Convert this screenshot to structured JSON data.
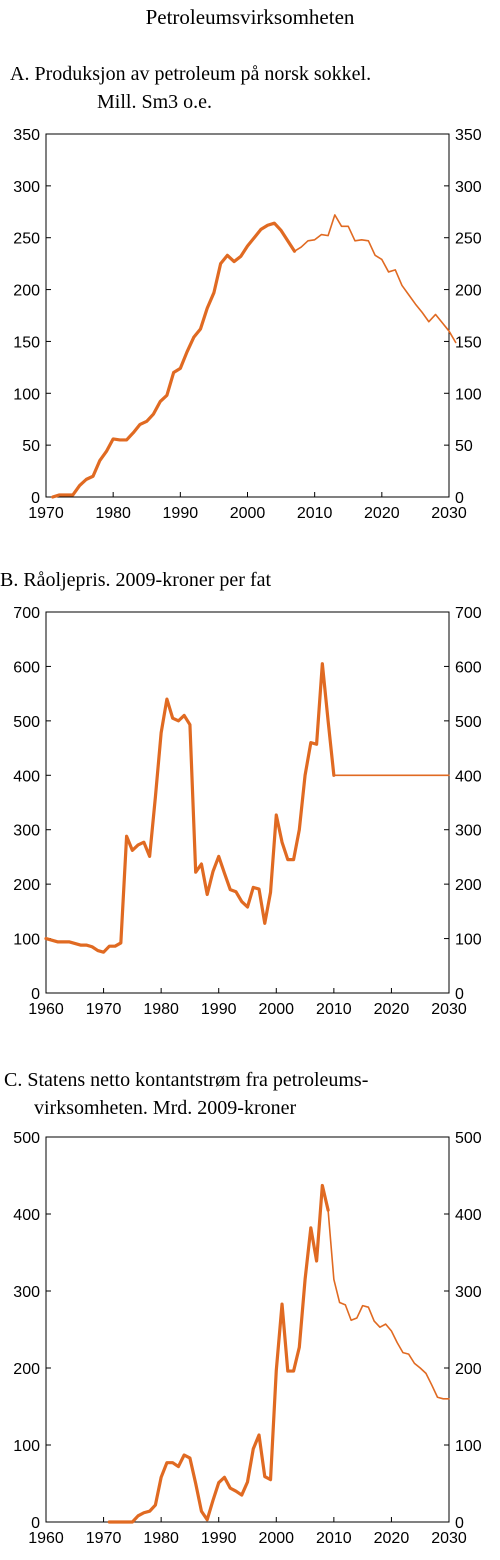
{
  "page_title": "Petroleumsvirksomheten",
  "colors": {
    "series": "#e06a22",
    "axis": "#000000"
  },
  "chart_data": [
    {
      "type": "line",
      "title_lines": [
        "A. Produksjon av petroleum på norsk sokkel.",
        "Mill. Sm3 o.e."
      ],
      "xlabel": "",
      "ylabel": "",
      "xlim": [
        1970,
        2030
      ],
      "ylim": [
        0,
        350
      ],
      "xticks": [
        1970,
        1980,
        1990,
        2000,
        2010,
        2020,
        2030
      ],
      "yticks": [
        0,
        50,
        100,
        150,
        200,
        250,
        300,
        350
      ],
      "grid": false,
      "legend": "none",
      "right_axis": true,
      "series": [
        {
          "style": "historical",
          "points": [
            [
              1971,
              0
            ],
            [
              1972,
              2
            ],
            [
              1973,
              2
            ],
            [
              1974,
              2
            ],
            [
              1975,
              11
            ],
            [
              1976,
              17
            ],
            [
              1977,
              20
            ],
            [
              1978,
              35
            ],
            [
              1979,
              44
            ],
            [
              1980,
              56
            ],
            [
              1981,
              55
            ],
            [
              1982,
              55
            ],
            [
              1983,
              62
            ],
            [
              1984,
              70
            ],
            [
              1985,
              73
            ],
            [
              1986,
              80
            ],
            [
              1987,
              92
            ],
            [
              1988,
              98
            ],
            [
              1989,
              120
            ],
            [
              1990,
              124
            ],
            [
              1991,
              140
            ],
            [
              1992,
              154
            ],
            [
              1993,
              162
            ],
            [
              1994,
              182
            ],
            [
              1995,
              197
            ],
            [
              1996,
              225
            ],
            [
              1997,
              233
            ],
            [
              1998,
              227
            ],
            [
              1999,
              232
            ],
            [
              2000,
              242
            ],
            [
              2001,
              250
            ],
            [
              2002,
              258
            ],
            [
              2003,
              262
            ],
            [
              2004,
              264
            ],
            [
              2005,
              257
            ],
            [
              2006,
              247
            ],
            [
              2007,
              237
            ]
          ]
        },
        {
          "style": "projection",
          "points": [
            [
              2007,
              237
            ],
            [
              2008,
              241
            ],
            [
              2009,
              247
            ],
            [
              2010,
              248
            ],
            [
              2011,
              253
            ],
            [
              2012,
              252
            ],
            [
              2013,
              272
            ],
            [
              2014,
              261
            ],
            [
              2015,
              261
            ],
            [
              2016,
              247
            ],
            [
              2017,
              248
            ],
            [
              2018,
              247
            ],
            [
              2019,
              233
            ],
            [
              2020,
              229
            ],
            [
              2021,
              217
            ],
            [
              2022,
              219
            ],
            [
              2023,
              204
            ],
            [
              2024,
              195
            ],
            [
              2025,
              186
            ],
            [
              2026,
              178
            ],
            [
              2027,
              169
            ],
            [
              2028,
              176
            ],
            [
              2029,
              168
            ],
            [
              2030,
              160
            ],
            [
              2031,
              149
            ]
          ]
        }
      ]
    },
    {
      "type": "line",
      "title_lines": [
        "B. Råoljepris. 2009-kroner per fat"
      ],
      "xlabel": "",
      "ylabel": "",
      "xlim": [
        1960,
        2030
      ],
      "ylim": [
        0,
        700
      ],
      "xticks": [
        1960,
        1970,
        1980,
        1990,
        2000,
        2010,
        2020,
        2030
      ],
      "yticks": [
        0,
        100,
        200,
        300,
        400,
        500,
        600,
        700
      ],
      "grid": false,
      "legend": "none",
      "right_axis": true,
      "series": [
        {
          "style": "historical",
          "points": [
            [
              1960,
              100
            ],
            [
              1961,
              97
            ],
            [
              1962,
              94
            ],
            [
              1963,
              94
            ],
            [
              1964,
              94
            ],
            [
              1965,
              91
            ],
            [
              1966,
              88
            ],
            [
              1967,
              88
            ],
            [
              1968,
              85
            ],
            [
              1969,
              78
            ],
            [
              1970,
              75
            ],
            [
              1971,
              86
            ],
            [
              1972,
              86
            ],
            [
              1973,
              92
            ],
            [
              1974,
              288
            ],
            [
              1975,
              262
            ],
            [
              1976,
              272
            ],
            [
              1977,
              277
            ],
            [
              1978,
              251
            ],
            [
              1979,
              360
            ],
            [
              1980,
              478
            ],
            [
              1981,
              540
            ],
            [
              1982,
              505
            ],
            [
              1983,
              500
            ],
            [
              1984,
              510
            ],
            [
              1985,
              493
            ],
            [
              1986,
              222
            ],
            [
              1987,
              237
            ],
            [
              1988,
              181
            ],
            [
              1989,
              223
            ],
            [
              1990,
              251
            ],
            [
              1991,
              220
            ],
            [
              1992,
              190
            ],
            [
              1993,
              186
            ],
            [
              1994,
              168
            ],
            [
              1995,
              158
            ],
            [
              1996,
              194
            ],
            [
              1997,
              191
            ],
            [
              1998,
              128
            ],
            [
              1999,
              185
            ],
            [
              2000,
              327
            ],
            [
              2001,
              277
            ],
            [
              2002,
              245
            ],
            [
              2003,
              245
            ],
            [
              2004,
              300
            ],
            [
              2005,
              400
            ],
            [
              2006,
              460
            ],
            [
              2007,
              457
            ],
            [
              2008,
              605
            ],
            [
              2009,
              500
            ],
            [
              2010,
              400
            ]
          ]
        },
        {
          "style": "projection",
          "points": [
            [
              2010,
              400
            ],
            [
              2030,
              400
            ]
          ]
        }
      ]
    },
    {
      "type": "line",
      "title_lines": [
        "C. Statens netto kontantstrøm fra petroleums-",
        "virksomheten. Mrd. 2009-kroner"
      ],
      "xlabel": "",
      "ylabel": "",
      "xlim": [
        1960,
        2030
      ],
      "ylim": [
        0,
        500
      ],
      "xticks": [
        1960,
        1970,
        1980,
        1990,
        2000,
        2010,
        2020,
        2030
      ],
      "yticks": [
        0,
        100,
        200,
        300,
        400,
        500
      ],
      "grid": false,
      "legend": "none",
      "right_axis": true,
      "series": [
        {
          "style": "historical",
          "points": [
            [
              1971,
              0
            ],
            [
              1972,
              0
            ],
            [
              1973,
              0
            ],
            [
              1974,
              0
            ],
            [
              1975,
              0
            ],
            [
              1976,
              8
            ],
            [
              1977,
              12
            ],
            [
              1978,
              14
            ],
            [
              1979,
              22
            ],
            [
              1980,
              58
            ],
            [
              1981,
              77
            ],
            [
              1982,
              77
            ],
            [
              1983,
              72
            ],
            [
              1984,
              87
            ],
            [
              1985,
              83
            ],
            [
              1986,
              50
            ],
            [
              1987,
              14
            ],
            [
              1988,
              3
            ],
            [
              1989,
              28
            ],
            [
              1990,
              51
            ],
            [
              1991,
              58
            ],
            [
              1992,
              44
            ],
            [
              1993,
              40
            ],
            [
              1994,
              35
            ],
            [
              1995,
              52
            ],
            [
              1996,
              95
            ],
            [
              1997,
              113
            ],
            [
              1998,
              59
            ],
            [
              1999,
              55
            ],
            [
              2000,
              197
            ],
            [
              2001,
              283
            ],
            [
              2002,
              196
            ],
            [
              2003,
              196
            ],
            [
              2004,
              227
            ],
            [
              2005,
              315
            ],
            [
              2006,
              382
            ],
            [
              2007,
              339
            ],
            [
              2008,
              437
            ],
            [
              2009,
              405
            ]
          ]
        },
        {
          "style": "projection",
          "points": [
            [
              2009,
              405
            ],
            [
              2010,
              315
            ],
            [
              2011,
              285
            ],
            [
              2012,
              282
            ],
            [
              2013,
              262
            ],
            [
              2014,
              265
            ],
            [
              2015,
              281
            ],
            [
              2016,
              279
            ],
            [
              2017,
              261
            ],
            [
              2018,
              253
            ],
            [
              2019,
              257
            ],
            [
              2020,
              248
            ],
            [
              2021,
              233
            ],
            [
              2022,
              220
            ],
            [
              2023,
              218
            ],
            [
              2024,
              206
            ],
            [
              2025,
              200
            ],
            [
              2026,
              193
            ],
            [
              2027,
              178
            ],
            [
              2028,
              162
            ],
            [
              2029,
              160
            ],
            [
              2030,
              160
            ]
          ]
        }
      ]
    }
  ]
}
